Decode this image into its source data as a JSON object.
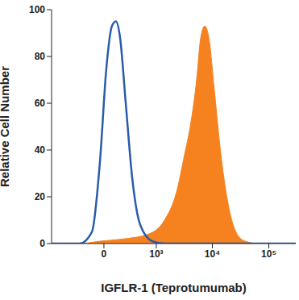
{
  "chart_data": {
    "type": "area",
    "x_label": "IGFLR-1 (Teprotumumab)",
    "y_label": "Relative Cell Number",
    "xlim": [
      -1000,
      300000
    ],
    "xticks": [
      0,
      {
        "value": 1000,
        "label": "10³"
      },
      {
        "value": 10000,
        "label": "10⁴"
      },
      {
        "value": 100000,
        "label": "10⁵"
      }
    ],
    "ylim": [
      0,
      100
    ],
    "yticks": [
      0,
      20,
      40,
      60,
      80,
      100
    ],
    "series": [
      {
        "type": "area",
        "color": "#f5821f",
        "x": [
          -221,
          -39,
          221,
          710,
          1410,
          2310,
          3210,
          4050,
          5260,
          6210,
          7320,
          8660,
          10900,
          14160,
          19700,
          27400,
          38100,
          62200
        ],
        "values": [
          0,
          1,
          2,
          4,
          10,
          22,
          38,
          50,
          70,
          88,
          93,
          88,
          65,
          38,
          15,
          4,
          1,
          0
        ]
      },
      {
        "type": "line",
        "color": "#2a5caa",
        "x": [
          -1000,
          -278,
          -122,
          -39,
          24,
          80,
          122,
          170,
          243,
          343,
          500,
          845,
          1410,
          300000
        ],
        "values": [
          0,
          0,
          5,
          35,
          75,
          93,
          95,
          88,
          60,
          28,
          8,
          1,
          0,
          0
        ]
      }
    ]
  }
}
